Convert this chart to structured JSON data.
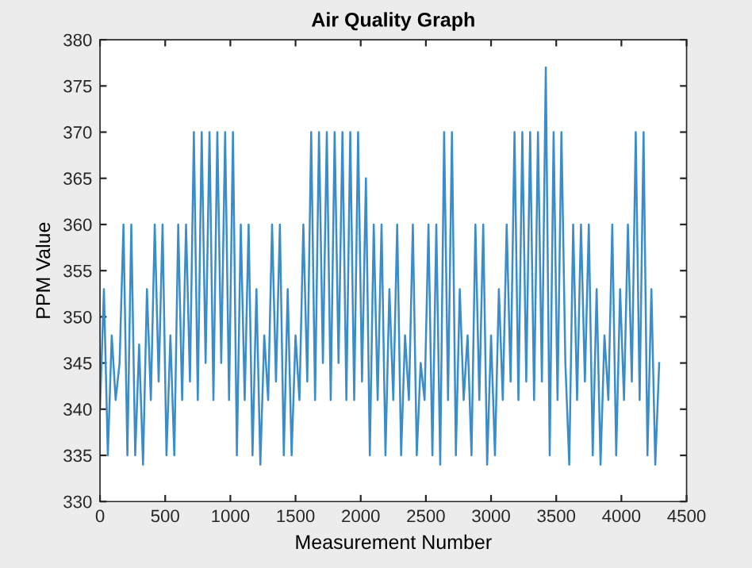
{
  "chart_data": {
    "type": "line",
    "title": "Air Quality Graph",
    "xlabel": "Measurement Number",
    "ylabel": "PPM Value",
    "x": [
      0,
      30,
      60,
      90,
      120,
      150,
      180,
      210,
      240,
      270,
      300,
      330,
      360,
      390,
      420,
      450,
      480,
      510,
      540,
      570,
      600,
      630,
      660,
      690,
      720,
      750,
      780,
      810,
      840,
      870,
      900,
      930,
      960,
      990,
      1020,
      1050,
      1080,
      1110,
      1140,
      1170,
      1200,
      1230,
      1260,
      1290,
      1320,
      1350,
      1380,
      1410,
      1440,
      1470,
      1500,
      1530,
      1560,
      1590,
      1620,
      1650,
      1680,
      1710,
      1740,
      1770,
      1800,
      1830,
      1860,
      1890,
      1920,
      1950,
      1980,
      2010,
      2040,
      2070,
      2100,
      2130,
      2160,
      2190,
      2220,
      2250,
      2280,
      2310,
      2340,
      2370,
      2400,
      2430,
      2460,
      2490,
      2520,
      2550,
      2580,
      2610,
      2640,
      2670,
      2700,
      2730,
      2760,
      2790,
      2820,
      2850,
      2880,
      2910,
      2940,
      2970,
      3000,
      3030,
      3060,
      3090,
      3120,
      3150,
      3180,
      3210,
      3240,
      3270,
      3300,
      3330,
      3360,
      3390,
      3420,
      3450,
      3480,
      3510,
      3540,
      3570,
      3600,
      3630,
      3660,
      3690,
      3720,
      3750,
      3780,
      3810,
      3840,
      3870,
      3900,
      3930,
      3960,
      3990,
      4020,
      4050,
      4080,
      4110,
      4140,
      4170,
      4200,
      4230,
      4260,
      4290
    ],
    "series": [
      {
        "color": "#3a8dc8",
        "values": [
          340,
          353,
          335,
          348,
          341,
          345,
          360,
          335,
          360,
          335,
          347,
          334,
          353,
          341,
          360,
          343,
          360,
          335,
          348,
          335,
          360,
          341,
          360,
          343,
          370,
          341,
          370,
          345,
          370,
          341,
          370,
          345,
          370,
          341,
          370,
          335,
          360,
          341,
          360,
          335,
          353,
          334,
          348,
          341,
          360,
          343,
          360,
          335,
          353,
          335,
          348,
          341,
          360,
          343,
          370,
          341,
          370,
          345,
          370,
          341,
          370,
          345,
          370,
          341,
          370,
          341,
          370,
          343,
          365,
          335,
          360,
          341,
          360,
          335,
          353,
          341,
          360,
          335,
          348,
          341,
          360,
          335,
          345,
          341,
          360,
          335,
          360,
          334,
          370,
          341,
          370,
          335,
          353,
          341,
          348,
          335,
          360,
          341,
          360,
          334,
          348,
          335,
          353,
          341,
          360,
          343,
          370,
          341,
          370,
          343,
          370,
          341,
          370,
          343,
          377,
          335,
          370,
          341,
          370,
          345,
          334,
          360,
          341,
          360,
          343,
          360,
          335,
          353,
          334,
          348,
          341,
          360,
          335,
          353,
          341,
          360,
          343,
          370,
          341,
          370,
          335,
          353,
          334,
          345
        ]
      }
    ],
    "xlim": [
      0,
      4500
    ],
    "xticks": [
      0,
      500,
      1000,
      1500,
      2000,
      2500,
      3000,
      3500,
      4000,
      4500
    ],
    "ylim": [
      330,
      380
    ],
    "yticks": [
      330,
      335,
      340,
      345,
      350,
      355,
      360,
      365,
      370,
      375,
      380
    ],
    "grid": false
  }
}
